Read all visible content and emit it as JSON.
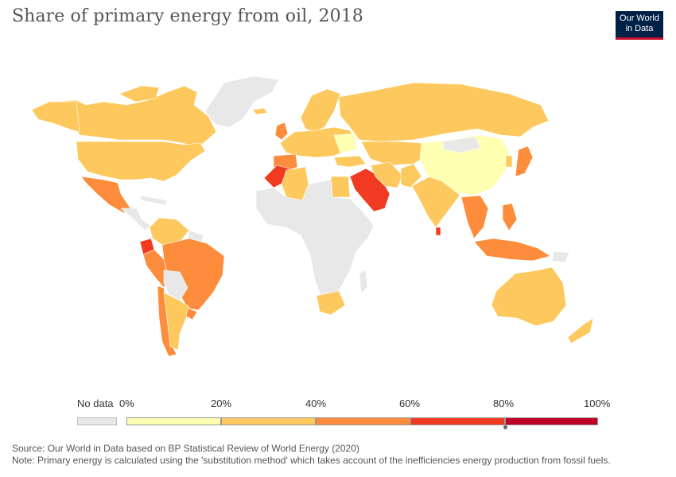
{
  "title": "Share of primary energy from oil, 2018",
  "logo": {
    "line1": "Our World",
    "line2": "in Data"
  },
  "legend": {
    "no_data_label": "No data",
    "tick_labels": [
      "0%",
      "20%",
      "40%",
      "60%",
      "80%",
      "100%"
    ],
    "bins": [
      {
        "from": 0,
        "to": 20,
        "color": "#ffffb2"
      },
      {
        "from": 20,
        "to": 40,
        "color": "#fdc95e"
      },
      {
        "from": 40,
        "to": 60,
        "color": "#fd8d3c"
      },
      {
        "from": 60,
        "to": 80,
        "color": "#f03b20"
      },
      {
        "from": 80,
        "to": 100,
        "color": "#bd0026"
      }
    ],
    "no_data_color": "#e8e8e8"
  },
  "footer": {
    "source": "Source: Our World in Data based on BP Statistical Review of World Energy (2020)",
    "note": "Note: Primary energy is calculated using the 'substitution method' which takes account of the inefficiencies energy production from fossil fuels."
  },
  "colors": {
    "land_no_data": "#e8e8e8",
    "bin_0_20": "#ffffb2",
    "bin_20_40": "#fdc95e",
    "bin_40_60": "#fd8d3c",
    "bin_60_80": "#f03b20",
    "border": "#ffffff"
  }
}
